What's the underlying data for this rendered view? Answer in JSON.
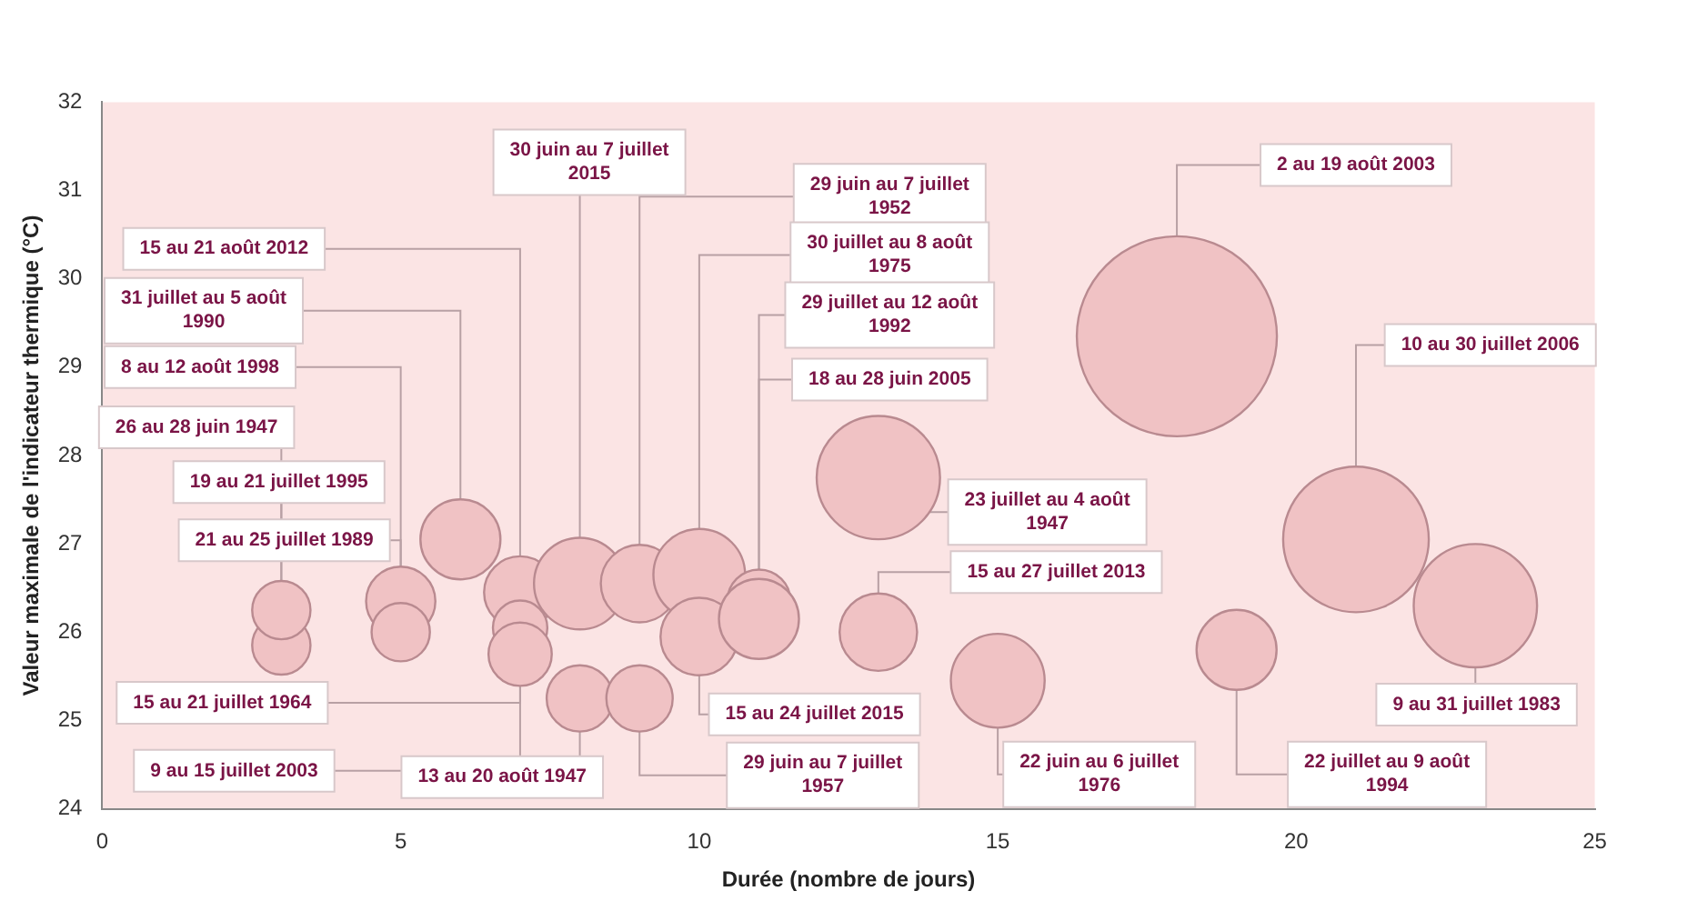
{
  "chart_data": {
    "type": "bubble",
    "xlabel": "Durée (nombre de jours)",
    "ylabel": "Valeur maximale de l'indicateur thermique (°C)",
    "x": [
      3,
      3,
      5,
      5,
      6,
      7,
      7,
      7,
      8,
      8,
      9,
      9,
      10,
      10,
      11,
      11,
      13,
      13,
      15,
      18,
      19,
      21,
      23
    ],
    "values": [
      25.85,
      26.25,
      26.35,
      26.0,
      27.05,
      26.45,
      26.05,
      25.75,
      26.55,
      25.25,
      26.55,
      25.25,
      26.65,
      25.95,
      26.35,
      26.15,
      27.75,
      26.0,
      25.45,
      29.35,
      25.8,
      27.05,
      26.3
    ],
    "sizes": [
      0.085,
      0.085,
      0.12,
      0.085,
      0.16,
      0.13,
      0.074,
      0.1,
      0.21,
      0.11,
      0.15,
      0.11,
      0.21,
      0.15,
      0.1,
      0.16,
      0.38,
      0.15,
      0.22,
      1,
      0.16,
      0.53,
      0.38
    ],
    "color": "#f0c2c4",
    "xlim": [
      0,
      25
    ],
    "xticks": [
      0,
      5,
      10,
      15,
      20,
      25
    ],
    "ylim": [
      24,
      32
    ],
    "yticks": [
      24,
      25,
      26,
      27,
      28,
      29,
      30,
      31,
      32
    ],
    "annotations": [
      {
        "text": "26 au 28 juin 1947",
        "x": 3,
        "y": 25.85
      },
      {
        "text": "19 au 21 juillet 1995",
        "x": 3,
        "y": 26.25
      },
      {
        "text": "8 au 12 août 1998",
        "x": 5,
        "y": 26.35
      },
      {
        "text": "21 au 25 juillet 1989",
        "x": 5,
        "y": 26.0
      },
      {
        "text": "31 juillet au 5 août 1990",
        "x": 6,
        "y": 27.05
      },
      {
        "text": "15 au 21 août 2012",
        "x": 7,
        "y": 26.45
      },
      {
        "text": "15 au 21 juillet 1964",
        "x": 7,
        "y": 26.05
      },
      {
        "text": "9 au 15 juillet 2003",
        "x": 7,
        "y": 25.75
      },
      {
        "text": "30 juin au 7 juillet 2015",
        "x": 8,
        "y": 26.55
      },
      {
        "text": "13 au 20 août 1947",
        "x": 8,
        "y": 25.25
      },
      {
        "text": "29 juin au 7 juillet 1952",
        "x": 9,
        "y": 26.55
      },
      {
        "text": "29 juin au 7 juillet 1957",
        "x": 9,
        "y": 25.25
      },
      {
        "text": "30 juillet au 8 août 1975",
        "x": 10,
        "y": 26.65
      },
      {
        "text": "15 au 24 juillet 2015",
        "x": 10,
        "y": 25.95
      },
      {
        "text": "29 juillet au 12 août 1992",
        "x": 11,
        "y": 26.35
      },
      {
        "text": "18 au 28 juin 2005",
        "x": 11,
        "y": 26.15
      },
      {
        "text": "23 juillet au 4 août 1947",
        "x": 13,
        "y": 27.75
      },
      {
        "text": "15 au 27 juillet 2013",
        "x": 13,
        "y": 26.0
      },
      {
        "text": "22 juin au 6 juillet 1976",
        "x": 15,
        "y": 25.45
      },
      {
        "text": "2 au 19 août 2003",
        "x": 18,
        "y": 29.35
      },
      {
        "text": "22 juillet au 9 août 1994",
        "x": 19,
        "y": 25.8
      },
      {
        "text": "10 au 30 juillet 2006",
        "x": 21,
        "y": 27.05
      },
      {
        "text": "9 au 31 juillet 1983",
        "x": 23,
        "y": 26.3
      }
    ]
  }
}
